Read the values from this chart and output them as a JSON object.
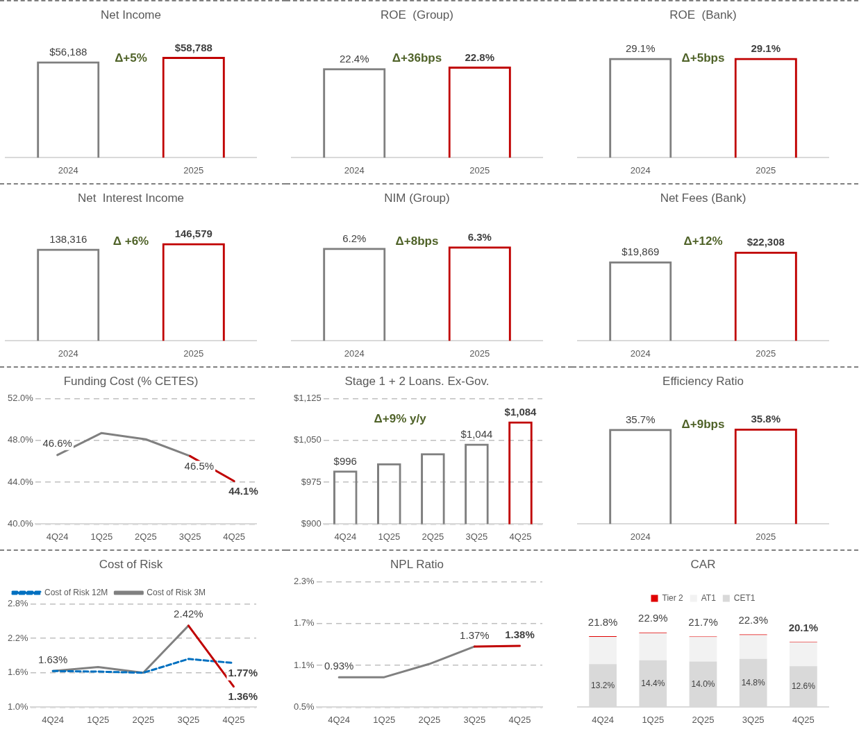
{
  "chart_data": [
    {
      "type": "bar",
      "title": "Net Income",
      "categories": [
        "2024",
        "2025"
      ],
      "values": [
        56188,
        58788
      ],
      "colors": [
        "#7f7f7f",
        "#c00000"
      ],
      "value_labels": [
        "$56,188",
        "$58,788"
      ],
      "annotations": [
        "Δ+5%"
      ]
    },
    {
      "type": "bar",
      "title": "ROE  (Group)",
      "categories": [
        "2024",
        "2025"
      ],
      "values": [
        22.4,
        22.8
      ],
      "colors": [
        "#7f7f7f",
        "#c00000"
      ],
      "value_labels": [
        "22.4%",
        "22.8%"
      ],
      "annotations": [
        "Δ+36bps"
      ]
    },
    {
      "type": "bar",
      "title": "ROE  (Bank)",
      "categories": [
        "2024",
        "2025"
      ],
      "values": [
        29.1,
        29.1
      ],
      "colors": [
        "#7f7f7f",
        "#c00000"
      ],
      "value_labels": [
        "29.1%",
        "29.1%"
      ],
      "annotations": [
        "Δ+5bps"
      ]
    },
    {
      "type": "bar",
      "title": "Net  Interest Income",
      "categories": [
        "2024",
        "2025"
      ],
      "values": [
        138316,
        146579
      ],
      "colors": [
        "#7f7f7f",
        "#c00000"
      ],
      "value_labels": [
        "138,316",
        "146,579"
      ],
      "annotations": [
        "Δ +6%"
      ]
    },
    {
      "type": "bar",
      "title": "NIM (Group)",
      "categories": [
        "2024",
        "2025"
      ],
      "values": [
        6.2,
        6.3
      ],
      "colors": [
        "#7f7f7f",
        "#c00000"
      ],
      "value_labels": [
        "6.2%",
        "6.3%"
      ],
      "annotations": [
        "Δ+8bps"
      ]
    },
    {
      "type": "bar",
      "title": "Net Fees (Bank)",
      "categories": [
        "2024",
        "2025"
      ],
      "values": [
        19869,
        22308
      ],
      "colors": [
        "#7f7f7f",
        "#c00000"
      ],
      "value_labels": [
        "$19,869",
        "$22,308"
      ],
      "annotations": [
        "Δ+12%"
      ]
    },
    {
      "type": "line",
      "title": "Funding Cost (% CETES)",
      "categories": [
        "4Q24",
        "1Q25",
        "2Q25",
        "3Q25",
        "4Q25"
      ],
      "series": [
        {
          "color": "#808080",
          "values": [
            46.6,
            48.7,
            48.1,
            46.5,
            null
          ],
          "value_labels": [
            "46.6%",
            null,
            null,
            "46.5%",
            null
          ]
        },
        {
          "color": "#c00000",
          "values": [
            null,
            null,
            null,
            46.5,
            44.1
          ],
          "value_labels": [
            null,
            null,
            null,
            null,
            "44.1%"
          ]
        }
      ],
      "ylim": [
        40,
        52
      ],
      "yticks": [
        {
          "value": 40,
          "label": "40.0%"
        },
        {
          "value": 44,
          "label": "44.0%"
        },
        {
          "value": 48,
          "label": "48.0%"
        },
        {
          "value": 52,
          "label": "52.0%"
        }
      ],
      "grid": "y",
      "marker": "none"
    },
    {
      "type": "bar",
      "title": "Stage 1 + 2 Loans. Ex-Gov.",
      "categories": [
        "4Q24",
        "1Q25",
        "2Q25",
        "3Q25",
        "4Q25"
      ],
      "values": [
        996,
        1009,
        1027,
        1044,
        1084
      ],
      "colors": [
        "#7f7f7f",
        "#7f7f7f",
        "#7f7f7f",
        "#7f7f7f",
        "#c00000"
      ],
      "value_labels": [
        "$996",
        null,
        null,
        "$1,044",
        "$1,084"
      ],
      "ylim": [
        900,
        1125
      ],
      "yticks": [
        {
          "value": 900,
          "label": "$900"
        },
        {
          "value": 975,
          "label": "$975"
        },
        {
          "value": 1050,
          "label": "$1,050"
        },
        {
          "value": 1125,
          "label": "$1,125"
        }
      ],
      "grid": "y",
      "annotations": [
        "Δ+9% y/y"
      ]
    },
    {
      "type": "bar",
      "title": "Efficiency Ratio",
      "categories": [
        "2024",
        "2025"
      ],
      "values": [
        35.7,
        35.8
      ],
      "colors": [
        "#7f7f7f",
        "#c00000"
      ],
      "value_labels": [
        "35.7%",
        "35.8%"
      ],
      "annotations": [
        "Δ+9bps"
      ]
    },
    {
      "type": "line",
      "title": "Cost of Risk",
      "categories": [
        "4Q24",
        "1Q25",
        "2Q25",
        "3Q25",
        "4Q25"
      ],
      "series": [
        {
          "name": "Cost of Risk 3M",
          "color": "#808080",
          "values": [
            1.63,
            1.7,
            1.6,
            2.42,
            null
          ],
          "value_labels": [
            "1.63%",
            null,
            null,
            "2.42%",
            null
          ]
        },
        {
          "name": "Cost of Risk 12M",
          "color": "#0070c0",
          "line_style": "dashed",
          "values": [
            1.63,
            1.62,
            1.6,
            1.84,
            1.77
          ],
          "value_labels": [
            null,
            null,
            null,
            null,
            "1.77%"
          ]
        },
        {
          "color": "#c00000",
          "values": [
            null,
            null,
            null,
            2.42,
            1.36
          ],
          "value_labels": [
            null,
            null,
            null,
            null,
            "1.36%"
          ]
        }
      ],
      "ylim": [
        1.0,
        2.8
      ],
      "yticks": [
        {
          "value": 1.0,
          "label": "1.0%"
        },
        {
          "value": 1.6,
          "label": "1.6%"
        },
        {
          "value": 2.2,
          "label": "2.2%"
        },
        {
          "value": 2.8,
          "label": "2.8%"
        }
      ],
      "grid": "y",
      "marker": "none",
      "legend": "top left"
    },
    {
      "type": "line",
      "title": "NPL Ratio",
      "categories": [
        "4Q24",
        "1Q25",
        "2Q25",
        "3Q25",
        "4Q25"
      ],
      "series": [
        {
          "color": "#808080",
          "values": [
            0.93,
            0.93,
            1.12,
            1.37,
            null
          ],
          "value_labels": [
            "0.93%",
            null,
            null,
            "1.37%",
            null
          ]
        },
        {
          "color": "#c00000",
          "values": [
            null,
            null,
            null,
            1.37,
            1.38
          ],
          "value_labels": [
            null,
            null,
            null,
            null,
            "1.38%"
          ]
        }
      ],
      "ylim": [
        0.5,
        2.3
      ],
      "yticks": [
        {
          "value": 0.5,
          "label": "0.5%"
        },
        {
          "value": 1.1,
          "label": "1.1%"
        },
        {
          "value": 1.7,
          "label": "1.7%"
        },
        {
          "value": 2.3,
          "label": "2.3%"
        }
      ],
      "grid": "y",
      "marker": "none"
    },
    {
      "type": "bar",
      "title": "CAR",
      "categories": [
        "4Q24",
        "1Q25",
        "2Q25",
        "3Q25",
        "4Q25"
      ],
      "stacked": true,
      "series": [
        {
          "name": "CET1",
          "color": "#d9d9d9",
          "values": [
            13.2,
            14.4,
            14.0,
            14.8,
            12.6
          ],
          "value_labels": [
            "13.2%",
            "14.4%",
            "14.0%",
            "14.8%",
            "12.6%"
          ]
        },
        {
          "name": "AT1",
          "color": "#f2f2f2",
          "values": [
            8.4,
            8.3,
            7.5,
            7.3,
            7.3
          ]
        },
        {
          "name": "Tier 2",
          "color": "#e00000",
          "values": [
            0.2,
            0.2,
            0.2,
            0.2,
            0.2
          ]
        }
      ],
      "totals": [
        "21.8%",
        "22.9%",
        "21.7%",
        "22.3%",
        "20.1%"
      ],
      "legend": "top"
    }
  ]
}
